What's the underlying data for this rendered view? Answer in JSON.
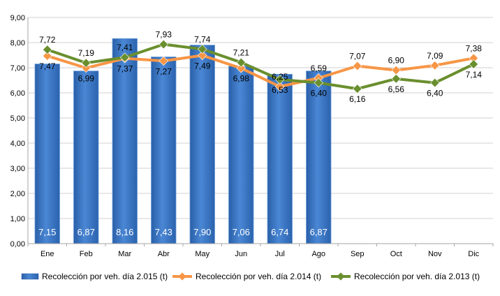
{
  "chart_data": {
    "type": "bar",
    "categories": [
      "Ene",
      "Feb",
      "Mar",
      "Abr",
      "May",
      "Jun",
      "Jul",
      "Ago",
      "Sep",
      "Oct",
      "Nov",
      "Dic"
    ],
    "ylim": [
      0,
      9
    ],
    "yticks": [
      "0,00",
      "1,00",
      "2,00",
      "3,00",
      "4,00",
      "5,00",
      "6,00",
      "7,00",
      "8,00",
      "9,00"
    ],
    "grid": true,
    "legend_position": "bottom",
    "series": [
      {
        "name": "Recolección por veh. día 2.015 (t)",
        "type": "bar",
        "color": "#3a75c4",
        "values": [
          7.15,
          6.87,
          8.16,
          7.43,
          7.9,
          7.06,
          6.74,
          6.87,
          null,
          null,
          null,
          null
        ],
        "labels": [
          "7,15",
          "6,87",
          "8,16",
          "7,43",
          "7,90",
          "7,06",
          "6,74",
          "6,87",
          "",
          "",
          "",
          ""
        ]
      },
      {
        "name": "Recolección por veh. día 2.014 (t)",
        "type": "line",
        "color": "#f79646",
        "values": [
          7.47,
          6.99,
          7.37,
          7.27,
          7.49,
          6.98,
          6.25,
          6.59,
          7.07,
          6.9,
          7.09,
          7.38
        ],
        "labels": [
          "7,47",
          "6,99",
          "7,37",
          "7,27",
          "7,49",
          "6,98",
          "6,25",
          "6,59",
          "7,07",
          "6,90",
          "7,09",
          "7,38"
        ]
      },
      {
        "name": "Recolección por veh. día 2.013 (t)",
        "type": "line",
        "color": "#6a8f2e",
        "values": [
          7.72,
          7.19,
          7.41,
          7.93,
          7.74,
          7.21,
          6.53,
          6.4,
          6.16,
          6.56,
          6.4,
          7.14
        ],
        "labels": [
          "7,72",
          "7,19",
          "7,41",
          "7,93",
          "7,74",
          "7,21",
          "6,53",
          "6,40",
          "6,16",
          "6,56",
          "6,40",
          "7,14"
        ]
      }
    ]
  }
}
